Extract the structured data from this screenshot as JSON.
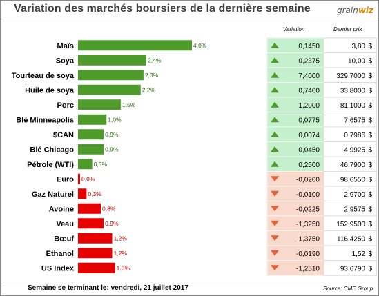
{
  "header": {
    "title": "Variation des marchés boursiers de la dernière semaine",
    "logo_prefix": "grain",
    "logo_suffix": "wiz"
  },
  "columns": {
    "variation": "Variation",
    "last_price": "Dernier prix"
  },
  "footer": {
    "week": "Semaine se terminant le: vendredi, 21 juillet 2017",
    "source": "Source: CME Group"
  },
  "colors": {
    "positive_bar": "#4e9a2a",
    "negative_bar": "#e60000",
    "positive_cell": "#c6efce",
    "negative_cell": "#f8d9cc",
    "up_arrow": "#4e9a2a",
    "down_arrow": "#e0643a"
  },
  "chart_data": {
    "type": "bar",
    "orientation": "horizontal",
    "categories": [
      "Maïs",
      "Soya",
      "Tourteau de soya",
      "Huile de soya",
      "Porc",
      "Blé Minneapolis",
      "$CAN",
      "Blé Chicago",
      "Pétrole (WTI)",
      "Euro",
      "Gaz Naturel",
      "Avoine",
      "Veau",
      "Bœuf",
      "Ethanol",
      "US Index"
    ],
    "values": [
      4.0,
      2.4,
      2.3,
      2.2,
      1.5,
      1.0,
      0.9,
      0.9,
      0.5,
      0.0,
      0.3,
      0.8,
      0.9,
      1.2,
      1.2,
      1.3
    ],
    "value_labels": [
      "4,0%",
      "2,4%",
      "2,3%",
      "2,2%",
      "1,5%",
      "1,0%",
      "0,9%",
      "0,9%",
      "0,5%",
      "0,0%",
      "0,3%",
      "0,8%",
      "0,9%",
      "1,2%",
      "1,2%",
      "1,3%"
    ],
    "direction": [
      "up",
      "up",
      "up",
      "up",
      "up",
      "up",
      "up",
      "up",
      "up",
      "down",
      "down",
      "down",
      "down",
      "down",
      "down",
      "down"
    ],
    "xlim": [
      0,
      4.0
    ],
    "grid": false,
    "legend": "none"
  },
  "table": {
    "variation": [
      "0,1450",
      "0,2375",
      "7,4000",
      "0,7400",
      "1,2000",
      "0,0775",
      "0,0074",
      "0,0450",
      "0,2500",
      "-0,0200",
      "-0,0100",
      "-0,0225",
      "-1,3250",
      "-1,3750",
      "-0,0190",
      "-1,2510"
    ],
    "price": [
      "3,80",
      "10,09",
      "329,7000",
      "33,8000",
      "81,1000",
      "7,6575",
      "0,7986",
      "4,9925",
      "46,7900",
      "98,6550",
      "2,9700",
      "2,9575",
      "152,9500",
      "116,4250",
      "1,52",
      "93,6790"
    ],
    "currency": [
      "$",
      "$",
      "$",
      "$",
      "$",
      "$",
      "$",
      "$",
      "$",
      "$",
      "$",
      "$",
      "$",
      "$",
      "$",
      "$"
    ]
  }
}
